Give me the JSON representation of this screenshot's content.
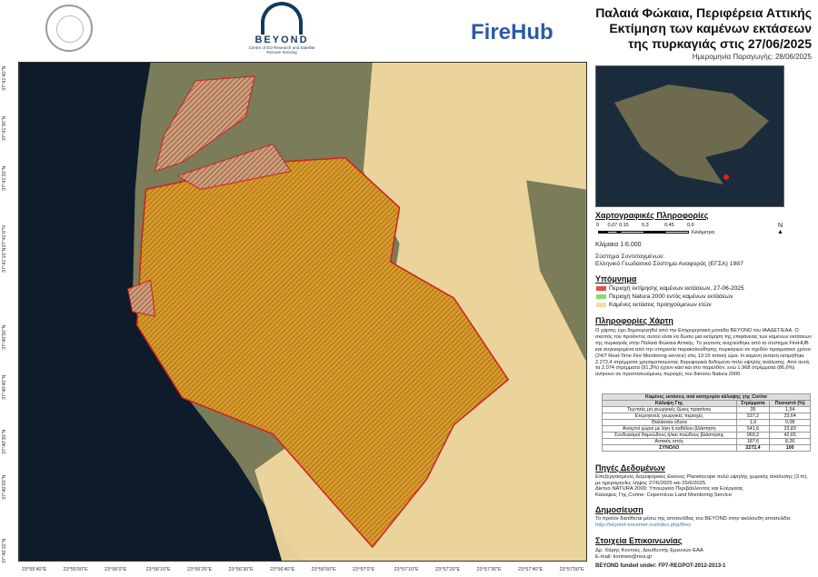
{
  "header": {
    "beyond_name": "BEYOND",
    "beyond_sub": "Centre of EO Research and Satellite Remote Sensing",
    "firehub": "FireHub",
    "title": "Παλαιά Φώκαια, Περιφέρεια Αττικής Εκτίμηση των καμένων εκτάσεων της πυρκαγιάς στις 27/06/2025",
    "production_date": "Ημερομηνία Παραγωγής: 28/06/2025"
  },
  "map": {
    "lat_labels": [
      "37°41'40\"N",
      "37°41'30\"N",
      "37°41'20\"N",
      "37°41'10\"N37°41'0\"N",
      "37°40'50\"N",
      "37°40'40\"N",
      "37°40'30\"N",
      "37°40'20\"N",
      "37°40'10\"N"
    ],
    "lon_labels": [
      "23°55'40\"E",
      "23°55'50\"E",
      "23°56'0\"E",
      "23°56'10\"E",
      "23°56'20\"E",
      "23°56'30\"E",
      "23°56'40\"E",
      "23°56'50\"E",
      "23°57'0\"E",
      "23°57'10\"E",
      "23°57'20\"E",
      "23°57'30\"E",
      "23°57'40\"E",
      "23°57'50\"E"
    ],
    "colors": {
      "sea": "#0d1b2a",
      "burn": "#d9a520",
      "burn_hatch": "#e02020",
      "previous": "#f0d9a0"
    }
  },
  "carto": {
    "heading": "Χαρτογραφικές Πληροφορίες",
    "scale_ticks": [
      "0",
      "0,07",
      "0,15",
      "0,3",
      "0,45",
      "0,6"
    ],
    "scale_unit": "Χιλιόμετρα",
    "north": "N",
    "scale": "Κλίμακα 1:6.000",
    "crs_label": "Σύστημα Συντεταγμένων:",
    "crs": "Ελληνικό Γεωδαιτικό Σύστημα Αναφοράς (ΕΓΣΑ) 1987"
  },
  "legend": {
    "heading": "Υπόμνημα",
    "items": [
      {
        "label": "Περιοχή εκτίμησης καμένων εκτάσεων, 27-06-2025",
        "color": "#e05050"
      },
      {
        "label": "Περιοχή Natura 2000 εντός καμένων εκτάσεων",
        "color": "#88dd66"
      },
      {
        "label": "Καμένες εκτάσεις προηγούμενων ετών",
        "color": "#f5dba8"
      }
    ]
  },
  "info": {
    "heading": "Πληροφορίες Χάρτη",
    "text": "Ο χάρτης έχει δημιουργηθεί από την Επιχειρησιακή μονάδα BEYOND του ΙΑΑΔΕΤ/ΕΑΑ. Ο σκοπός του προϊόντος αυτού είναι να δώσει μια εκτίμηση της επιφάνειας των καμένων εκτάσεων της πυρκαγιάς στην Παλαιά Φώκαια Αττικής. Το γεγονός ανιχνεύθηκε από το σύστημα FireHUB και συγκεκριμένα από την υπηρεσία παρακολούθησης πυρκαγιών σε σχεδόν πραγματικό χρόνο (24/7 Real-Time Fire Monitoring service) στις 13:15 τοπική ώρα. Η καμένη έκταση εκτιμήθηκε 2.272,4 στρέμματα χρησιμοποιώντας δορυφορικά δεδομένα πολύ υψηλής ανάλυσης. Από αυτά, τα 2.074 στρέμματα (91,3%) έχουν καεί και στο παρελθόν, ενώ 1.968 στρέμματα (86,6%) ανήκουν σε προστατευόμενες περιοχές του δικτύου Natura 2000."
  },
  "table": {
    "title": "Καμένες εκτάσεις ανά κατηγορία κάλυψης γης Corine",
    "headers": [
      "Κάλυψη Γης",
      "Στρέμματα",
      "Ποσοστό (%)"
    ],
    "rows": [
      [
        "Τεχνητές μη γεωργικές ζώνες πρασίνου",
        "35",
        "1,54"
      ],
      [
        "Ετερογενείς γεωργικές περιοχές",
        "537,2",
        "23,64"
      ],
      [
        "Θαλάσσια ύδατα",
        "1,9",
        "0,08"
      ],
      [
        "Ανοιχτοί χώροι με λίγη ή καθόλου βλάστηση",
        "541,6",
        "23,83"
      ],
      [
        "Συνδυασμοί θαμνώδους ή/και ποώδους βλάστησης",
        "969,2",
        "42,65"
      ],
      [
        "Αστικός ιστός",
        "187,6",
        "8,26"
      ]
    ],
    "total": [
      "ΣΥΝΟΛΟ",
      "2272,4",
      "100"
    ]
  },
  "sources": {
    "heading": "Πηγές Δεδομένων",
    "lines": [
      "Επεξεργασμένες Δορυφορικές Εικόνες Planetscope πολύ υψηλής χωρικής ανάλυσης (3 m), με ημερομηνίες λήψης 27/6/2025 και 25/6/2025.",
      "Δίκτυο NATURA 2000: Υπουργείο Περιβάλλοντος και Ενέργειας",
      "Καλύψεις Γης Corine: Copernicus Land Monitoring Service"
    ]
  },
  "publication": {
    "heading": "Δημοσίευση",
    "text": "Το προϊόν διατίθεται μέσω της ιστοσελίδας του BEYOND στην ακόλουθη ιστοσελίδα:",
    "link": "http://beyond-eocenter.eu/index.php/fires"
  },
  "contact": {
    "heading": "Στοιχεία Επικοινωνίας",
    "name": "Δρ. Χάρης Κοντοές, Διευθυντής Ερευνών ΕΑΑ",
    "email": "E-mail: kontoes@noa.gr",
    "funding": "BEYOND funded under: FP7-REGPOT-2012-2013-1"
  }
}
